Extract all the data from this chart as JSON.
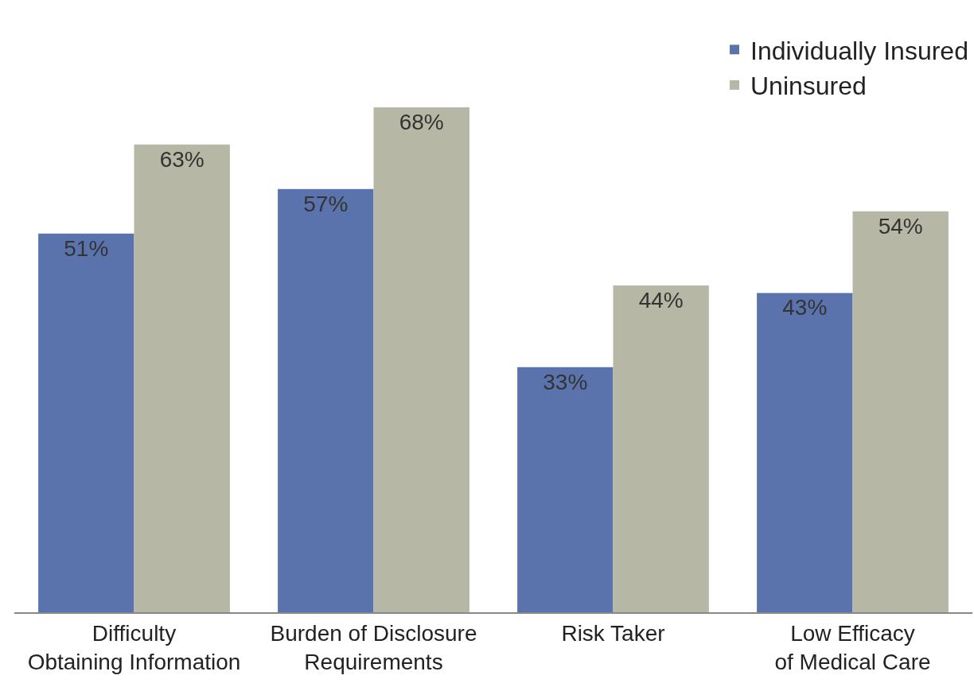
{
  "chart_data": {
    "type": "bar",
    "categories": [
      "Difficulty\nObtaining Information",
      "Burden of Disclosure\nRequirements",
      "Risk Taker",
      "Low Efficacy\nof Medical Care"
    ],
    "series": [
      {
        "name": "Individually Insured",
        "color": "#5b73ad",
        "values": [
          51,
          57,
          33,
          43
        ],
        "value_labels": [
          "51%",
          "57%",
          "33%",
          "43%"
        ]
      },
      {
        "name": "Uninsured",
        "color": "#b7b7a5",
        "values": [
          63,
          68,
          44,
          54
        ],
        "value_labels": [
          "63%",
          "68%",
          "44%",
          "54%"
        ]
      }
    ],
    "legend": "top right",
    "tick_labels": "x"
  }
}
